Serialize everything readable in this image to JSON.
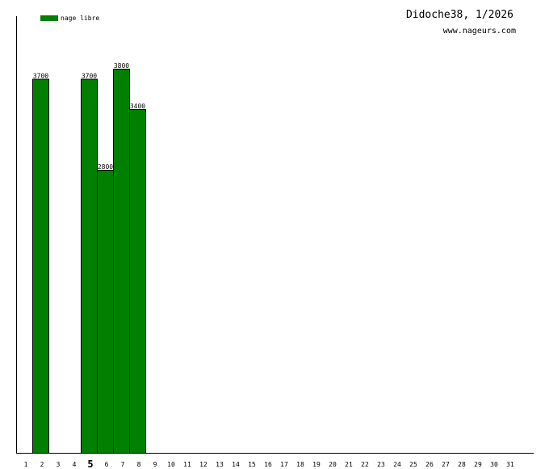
{
  "header": {
    "title": "Didoche38, 1/2026",
    "site": "www.nageurs.com"
  },
  "colors": {
    "bar": "#007f00",
    "bar_stroke": "#000000",
    "axis": "#000000"
  },
  "chart_data": {
    "type": "bar",
    "title": "Didoche38, 1/2026",
    "xlabel": "",
    "ylabel": "",
    "ylim": [
      0,
      4300
    ],
    "legend": "top-left",
    "grid": false,
    "highlighted_category": "5",
    "categories": [
      "1",
      "2",
      "3",
      "4",
      "5",
      "6",
      "7",
      "8",
      "9",
      "10",
      "11",
      "12",
      "13",
      "14",
      "15",
      "16",
      "17",
      "18",
      "19",
      "20",
      "21",
      "22",
      "23",
      "24",
      "25",
      "26",
      "27",
      "28",
      "29",
      "30",
      "31"
    ],
    "series": [
      {
        "name": "nage libre",
        "values": [
          null,
          3700,
          null,
          null,
          3700,
          2800,
          3800,
          3400,
          null,
          null,
          null,
          null,
          null,
          null,
          null,
          null,
          null,
          null,
          null,
          null,
          null,
          null,
          null,
          null,
          null,
          null,
          null,
          null,
          null,
          null,
          null
        ]
      }
    ]
  }
}
